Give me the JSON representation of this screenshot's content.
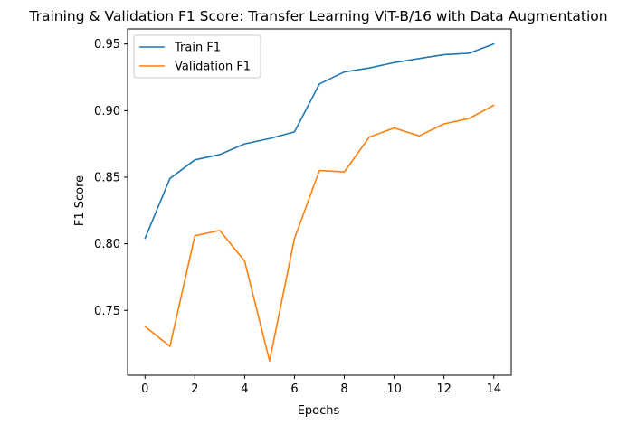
{
  "chart_data": {
    "type": "line",
    "title": "Training & Validation F1 Score: Transfer Learning ViT-B/16 with Data Augmentation",
    "xlabel": "Epochs",
    "ylabel": "F1 Score",
    "x": [
      0,
      1,
      2,
      3,
      4,
      5,
      6,
      7,
      8,
      9,
      10,
      11,
      12,
      13,
      14
    ],
    "xlim": [
      -0.7,
      14.7
    ],
    "ylim": [
      0.7013,
      0.9613
    ],
    "xticks": [
      0,
      2,
      4,
      6,
      8,
      10,
      12,
      14
    ],
    "yticks": [
      0.75,
      0.8,
      0.85,
      0.9,
      0.95
    ],
    "xtick_labels": [
      "0",
      "2",
      "4",
      "6",
      "8",
      "10",
      "12",
      "14"
    ],
    "ytick_labels": [
      "0.75",
      "0.80",
      "0.85",
      "0.90",
      "0.95"
    ],
    "grid": false,
    "legend_position": "upper-left",
    "series": [
      {
        "name": "Train F1",
        "color": "#1f77b4",
        "values": [
          0.804,
          0.849,
          0.863,
          0.867,
          0.875,
          0.879,
          0.884,
          0.92,
          0.929,
          0.932,
          0.936,
          0.939,
          0.942,
          0.943,
          0.95
        ]
      },
      {
        "name": "Validation F1",
        "color": "#ff7f0e",
        "values": [
          0.738,
          0.723,
          0.806,
          0.81,
          0.787,
          0.712,
          0.804,
          0.855,
          0.854,
          0.88,
          0.887,
          0.881,
          0.89,
          0.894,
          0.904
        ]
      }
    ]
  }
}
